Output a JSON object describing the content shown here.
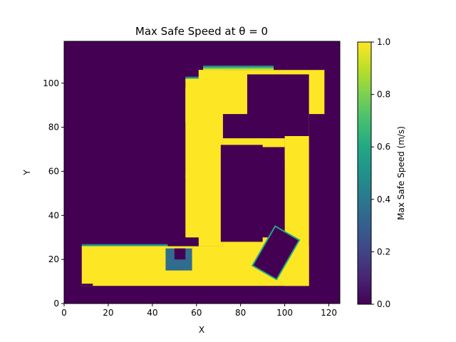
{
  "chart_data": {
    "type": "heatmap",
    "title": "Max Safe Speed at θ = 0",
    "xlabel": "X",
    "ylabel": "Y",
    "xlim": [
      0,
      125
    ],
    "ylim": [
      0,
      119
    ],
    "xticks": [
      0,
      20,
      40,
      60,
      80,
      100,
      120
    ],
    "yticks": [
      0,
      20,
      40,
      60,
      80,
      100
    ],
    "grid": false,
    "colormap": "viridis",
    "colorbar": {
      "label": "Max Safe Speed (m/s)",
      "range": [
        0.0,
        1.0
      ],
      "ticks": [
        "0.0",
        "0.2",
        "0.4",
        "0.6",
        "0.8",
        "1.0"
      ]
    },
    "regions": [
      {
        "name": "bottom-corridor",
        "value": 1.0,
        "x": [
          8,
          111
        ],
        "y": [
          8,
          26
        ]
      },
      {
        "name": "notch-lower-left",
        "value": 0.0,
        "x": [
          8,
          13
        ],
        "y": [
          8,
          9
        ]
      },
      {
        "name": "vertical-corridor",
        "value": 1.0,
        "x": [
          61,
          72
        ],
        "y": [
          26,
          106
        ]
      },
      {
        "name": "left-wing",
        "value": 1.0,
        "x": [
          55,
          63
        ],
        "y": [
          30,
          98
        ]
      },
      {
        "name": "top-block",
        "value": 1.0,
        "x": [
          61,
          118
        ],
        "y": [
          86,
          106
        ]
      },
      {
        "name": "top-left-lobe",
        "value": 1.0,
        "x": [
          55,
          65
        ],
        "y": [
          82,
          102
        ]
      },
      {
        "name": "right-corridor",
        "value": 1.0,
        "x": [
          100,
          111
        ],
        "y": [
          8,
          86
        ]
      },
      {
        "name": "middle-bridge",
        "value": 1.0,
        "x": [
          72,
          100
        ],
        "y": [
          71,
          75
        ]
      },
      {
        "name": "lower-bridge",
        "value": 1.0,
        "x": [
          72,
          100
        ],
        "y": [
          24,
          30
        ]
      },
      {
        "name": "center-obstacle",
        "value": 0.0,
        "x": [
          71,
          90
        ],
        "y": [
          28,
          72
        ]
      },
      {
        "name": "notch-lower-right",
        "value": 0.0,
        "x": [
          90,
          100
        ],
        "y": [
          32,
          65
        ]
      },
      {
        "name": "dark-obstacle-top",
        "value": 0.0,
        "x": [
          83,
          111
        ],
        "y": [
          76,
          104
        ]
      },
      {
        "name": "teal-pocket",
        "value": 0.35,
        "x": [
          46,
          58
        ],
        "y": [
          15,
          25
        ]
      },
      {
        "name": "pocket-core",
        "value": 0.0,
        "x": [
          50,
          55
        ],
        "y": [
          20,
          25
        ]
      },
      {
        "name": "rotated-obstacle",
        "value": 0.0,
        "center": [
          96,
          23
        ],
        "width": 12,
        "height": 20,
        "angle_deg": 30
      }
    ],
    "edge_gradients": [
      {
        "edge": "top-of-bottom-corridor",
        "x": [
          8,
          47
        ],
        "y": 25
      },
      {
        "edge": "top-block",
        "x": [
          63,
          95
        ],
        "y": 106
      },
      {
        "edge": "top-left-lobe",
        "x": [
          55,
          64
        ],
        "y": 101
      },
      {
        "edge": "left-wing",
        "x": [
          55,
          63
        ],
        "y": 57
      },
      {
        "edge": "lower-bridge",
        "x": [
          73,
          90
        ],
        "y": 29
      }
    ]
  }
}
